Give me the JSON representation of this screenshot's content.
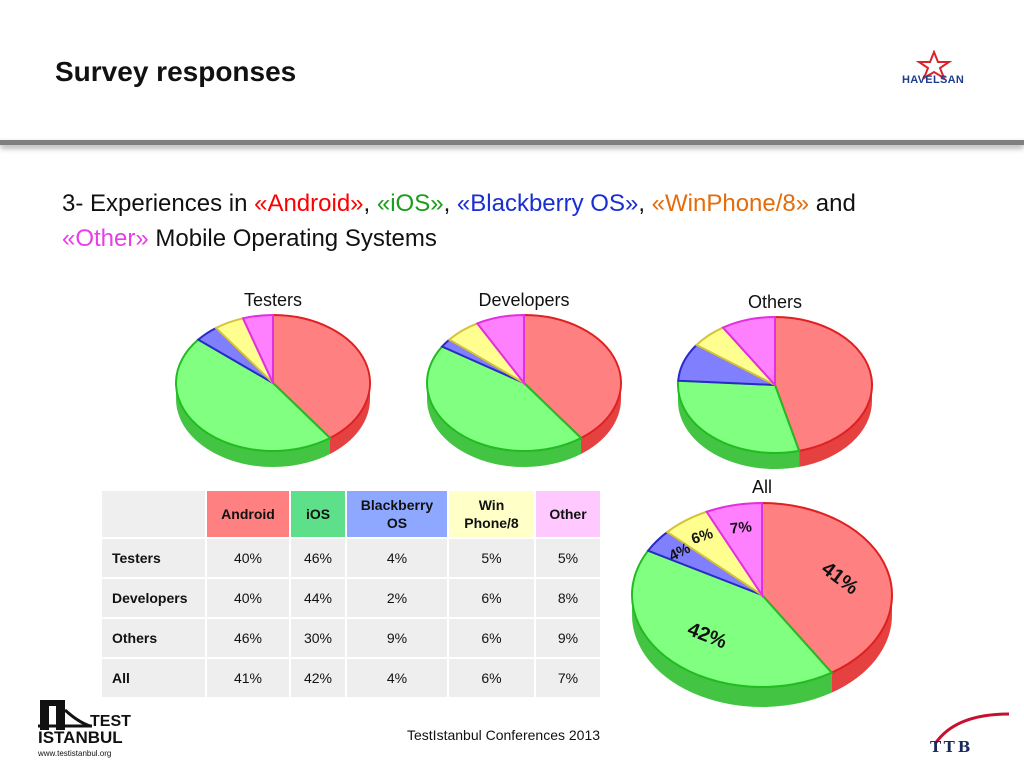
{
  "header": {
    "title": "Survey responses",
    "logo_text": "HAVELSAN"
  },
  "heading": {
    "prefix": "3- Experiences in ",
    "android": "«Android»",
    "sep1": ", ",
    "ios": "«iOS»",
    "sep2": ", ",
    "bb": "«Blackberry OS»",
    "sep3": ", ",
    "win": "«WinPhone/8»",
    "and": " and",
    "other": "«Other»",
    "suffix": " Mobile Operating Systems"
  },
  "colors": {
    "android": "#ff8080",
    "android_edge": "#e02020",
    "ios": "#80ff80",
    "ios_edge": "#22bb22",
    "bb": "#8080ff",
    "bb_edge": "#2a2ac8",
    "win": "#ffff90",
    "win_edge": "#d6c23a",
    "other": "#ff80ff",
    "other_edge": "#e030e0"
  },
  "table": {
    "headers": [
      "Android",
      "iOS",
      "Blackberry OS",
      "Win Phone/8",
      "Other"
    ],
    "rows": [
      {
        "label": "Testers",
        "values": [
          "40%",
          "46%",
          "4%",
          "5%",
          "5%"
        ]
      },
      {
        "label": "Developers",
        "values": [
          "40%",
          "44%",
          "2%",
          "6%",
          "8%"
        ]
      },
      {
        "label": "Others",
        "values": [
          "46%",
          "30%",
          "9%",
          "6%",
          "9%"
        ]
      },
      {
        "label": "All",
        "values": [
          "41%",
          "42%",
          "4%",
          "6%",
          "7%"
        ]
      }
    ]
  },
  "chart_data": [
    {
      "type": "pie",
      "title": "Testers",
      "categories": [
        "Android",
        "iOS",
        "Blackberry OS",
        "WinPhone/8",
        "Other"
      ],
      "values": [
        40,
        46,
        4,
        5,
        5
      ]
    },
    {
      "type": "pie",
      "title": "Developers",
      "categories": [
        "Android",
        "iOS",
        "Blackberry OS",
        "WinPhone/8",
        "Other"
      ],
      "values": [
        40,
        44,
        2,
        6,
        8
      ]
    },
    {
      "type": "pie",
      "title": "Others",
      "categories": [
        "Android",
        "iOS",
        "Blackberry OS",
        "WinPhone/8",
        "Other"
      ],
      "values": [
        46,
        30,
        9,
        6,
        9
      ]
    },
    {
      "type": "pie",
      "title": "All",
      "categories": [
        "Android",
        "iOS",
        "Blackberry OS",
        "WinPhone/8",
        "Other"
      ],
      "values": [
        41,
        42,
        4,
        6,
        7
      ],
      "data_labels": [
        "41%",
        "42%",
        "4%",
        "6%",
        "7%"
      ]
    }
  ],
  "footer": {
    "conference": "TestIstanbul Conferences 2013",
    "test_logo_line1": "TEST",
    "test_logo_line2": "ISTANBUL",
    "test_logo_url": "www.testistanbul.org",
    "ttb_logo": "TTB"
  }
}
